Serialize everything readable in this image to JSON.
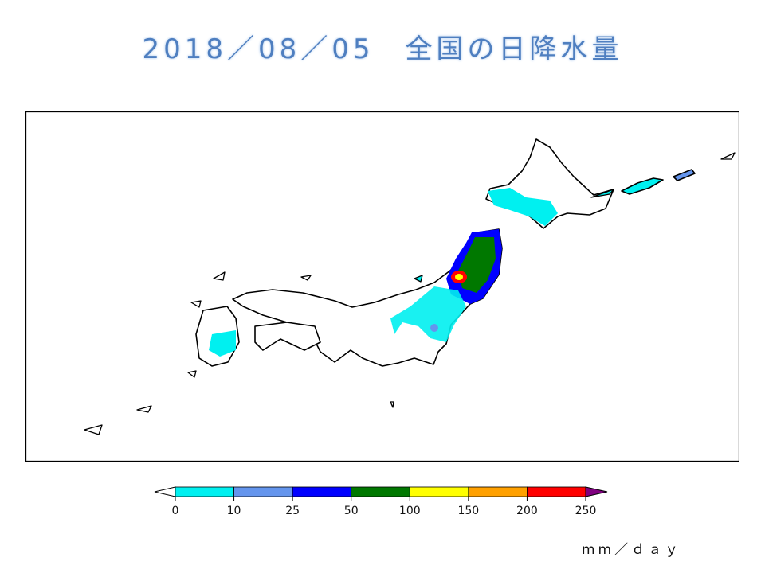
{
  "title": "2018／08／05　全国の日降水量",
  "legend": {
    "units": "mm／ｄａｙ",
    "ticks": [
      "0",
      "10",
      "25",
      "50",
      "100",
      "150",
      "200",
      "250"
    ],
    "colors": [
      "#00f0f0",
      "#6495ed",
      "#0000ff",
      "#007800",
      "#ffff00",
      "#ffa000",
      "#ff0000"
    ],
    "under_color": "#ffffff",
    "over_color": "#800080"
  }
}
